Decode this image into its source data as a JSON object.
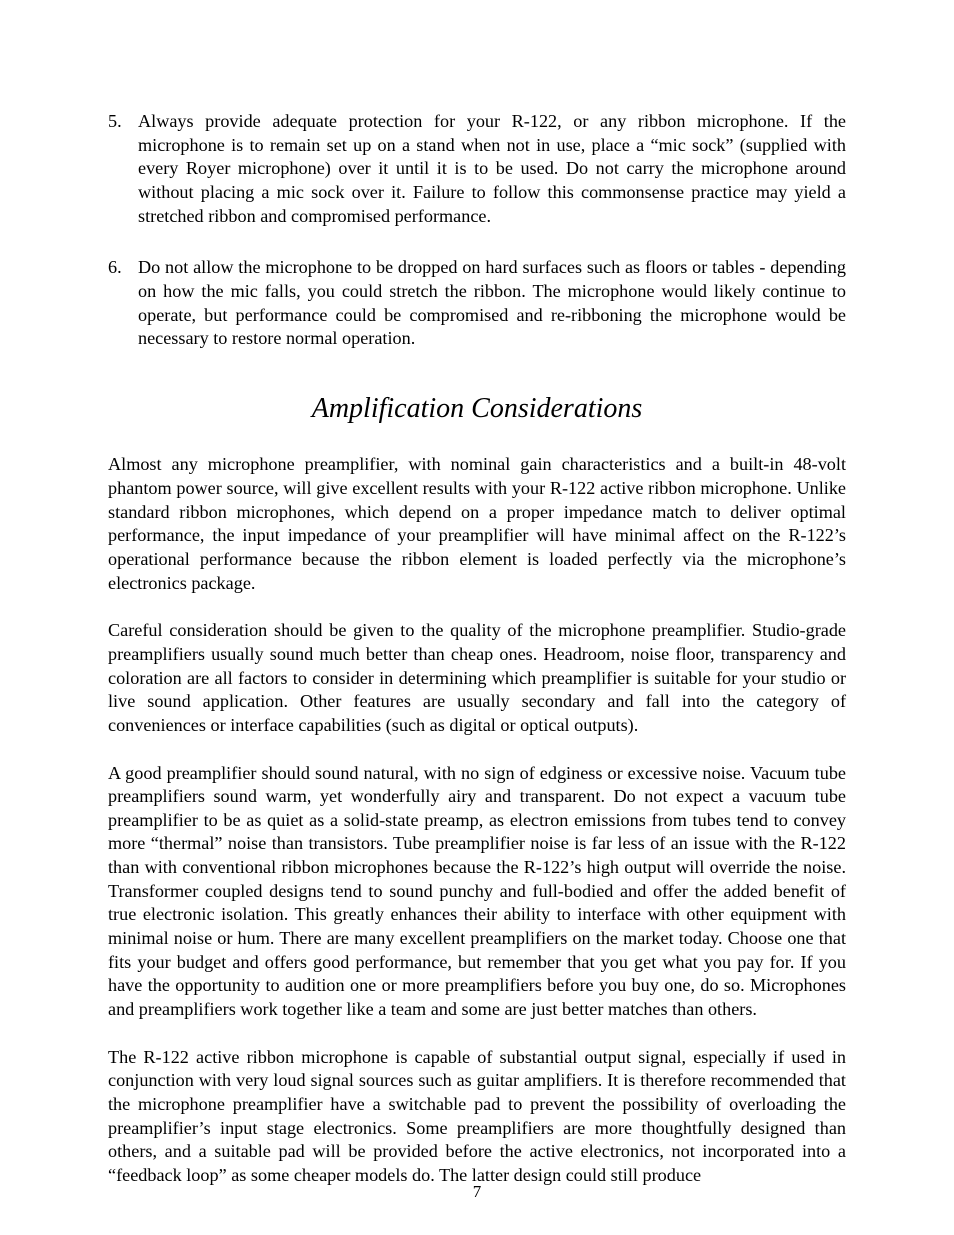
{
  "list": {
    "items": [
      {
        "number": "5.",
        "text": "Always provide adequate protection for your R-122, or any ribbon microphone. If the microphone is to remain set up on a stand when not in use, place a “mic sock” (supplied with every Royer microphone) over it until it is to be used. Do not carry the microphone around without placing a mic sock over it. Failure to follow this commonsense practice may yield a stretched ribbon and compromised performance."
      },
      {
        "number": "6.",
        "text": "Do not allow the microphone to be dropped on hard surfaces such as floors or tables - depending on how the mic falls, you could stretch the ribbon. The microphone would likely continue to operate, but performance could be compromised and re-ribboning the microphone would be necessary to restore normal operation."
      }
    ]
  },
  "heading": "Amplification Considerations",
  "paragraphs": [
    "Almost any microphone preamplifier, with nominal gain characteristics and a built-in 48-volt phantom power source, will give excellent results with your R-122 active ribbon microphone. Unlike standard ribbon microphones, which depend on a proper impedance match to deliver optimal performance, the input impedance of your preamplifier will have minimal affect on the R-122’s operational performance because the ribbon element is loaded perfectly via the microphone’s electronics package.",
    "Careful consideration should be given to the quality of the microphone preamplifier. Studio-grade preamplifiers usually sound much better than cheap ones. Headroom, noise floor, transparency and coloration are all factors to consider in determining which preamplifier is suitable for your studio or live sound application. Other features are usually secondary and fall into the category of conveniences or interface capabilities (such as digital or optical outputs).",
    "A good preamplifier should sound natural, with no sign of edginess or excessive noise. Vacuum tube preamplifiers sound warm, yet wonderfully airy and transparent. Do not expect a vacuum tube preamplifier to be as quiet as a solid-state preamp, as electron emissions from tubes tend to convey more “thermal” noise than transistors. Tube preamplifier noise is far less of an issue with the R-122 than with conventional ribbon microphones because the R-122’s high output will override the noise. Transformer coupled designs tend to sound punchy and full-bodied and offer the added benefit of true electronic isolation. This greatly enhances their ability to interface with other equipment with minimal noise or hum. There are many excellent preamplifiers on the market today. Choose one that fits your budget and offers good performance, but remember that you get what you pay for. If you have the opportunity to audition one or more preamplifiers before you buy one, do so. Microphones and preamplifiers work together like a team and some are just better matches than others.",
    "The R-122 active ribbon microphone is capable of substantial output signal, especially if used in conjunction with very loud signal sources such as guitar amplifiers. It is therefore recommended that the microphone preamplifier have a switchable pad to prevent the possibility of overloading the preamplifier’s input stage electronics. Some preamplifiers are more thoughtfully designed than others, and a suitable pad will be provided before the active electronics, not incorporated into a “feedback loop” as some cheaper models do. The latter design could still produce"
  ],
  "pageNumber": "7"
}
